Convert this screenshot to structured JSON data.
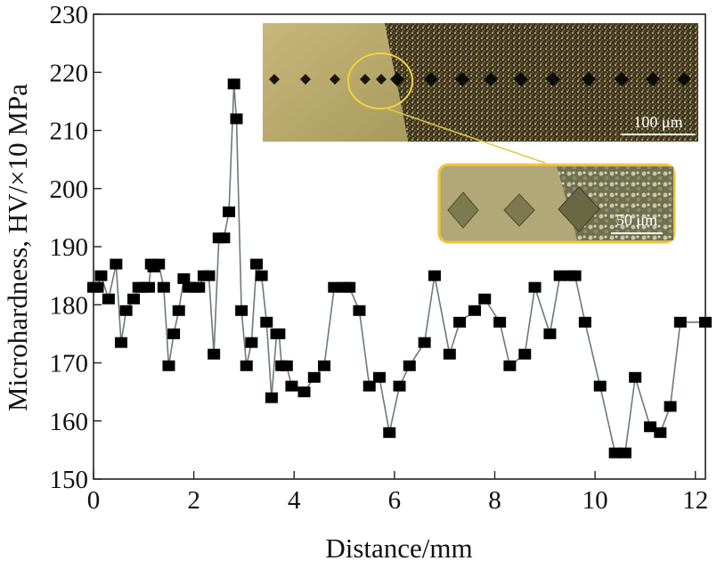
{
  "chart_data": {
    "type": "line",
    "xlabel": "Distance/mm",
    "ylabel": "Microhardness, HV/×10 MPa",
    "xlim": [
      0,
      12.2
    ],
    "ylim": [
      150,
      230
    ],
    "xticks": [
      0,
      2,
      4,
      6,
      8,
      10,
      12
    ],
    "yticks": [
      150,
      160,
      170,
      180,
      190,
      200,
      210,
      220,
      230
    ],
    "grid": false,
    "series": [
      {
        "marker": "square",
        "color": "#000000",
        "line_color": "#6b7a7a",
        "x": [
          0.0,
          0.08,
          0.15,
          0.3,
          0.45,
          0.55,
          0.65,
          0.8,
          0.9,
          1.0,
          1.1,
          1.15,
          1.2,
          1.3,
          1.4,
          1.5,
          1.6,
          1.7,
          1.8,
          1.9,
          2.0,
          2.1,
          2.2,
          2.3,
          2.4,
          2.5,
          2.6,
          2.7,
          2.8,
          2.85,
          2.95,
          3.05,
          3.15,
          3.25,
          3.35,
          3.45,
          3.55,
          3.65,
          3.7,
          3.75,
          3.85,
          3.95,
          4.2,
          4.4,
          4.6,
          4.8,
          5.0,
          5.1,
          5.3,
          5.5,
          5.7,
          5.9,
          6.1,
          6.3,
          6.6,
          6.8,
          7.1,
          7.3,
          7.6,
          7.8,
          8.1,
          8.3,
          8.6,
          8.8,
          9.1,
          9.3,
          9.5,
          9.6,
          9.8,
          10.1,
          10.4,
          10.6,
          10.8,
          11.1,
          11.3,
          11.5,
          11.7,
          12.2
        ],
        "y": [
          183,
          183,
          185,
          181,
          187,
          173.5,
          179,
          181,
          183,
          183,
          183,
          187,
          186.5,
          187,
          183,
          169.5,
          175,
          179,
          184.5,
          183,
          183,
          183,
          185,
          185,
          171.5,
          191.5,
          191.5,
          196,
          218,
          212,
          179,
          169.5,
          173.5,
          187,
          185,
          177,
          164,
          175,
          175,
          169.5,
          169.5,
          166,
          165,
          167.5,
          169.5,
          183,
          183,
          183,
          179,
          166,
          167.5,
          158,
          166,
          169.5,
          173.5,
          185,
          171.5,
          177,
          179,
          181,
          177,
          169.5,
          171.5,
          183,
          175,
          185,
          185,
          185,
          177,
          166,
          154.5,
          154.5,
          167.5,
          159,
          158,
          162.5,
          177,
          177
        ]
      }
    ]
  }
}
